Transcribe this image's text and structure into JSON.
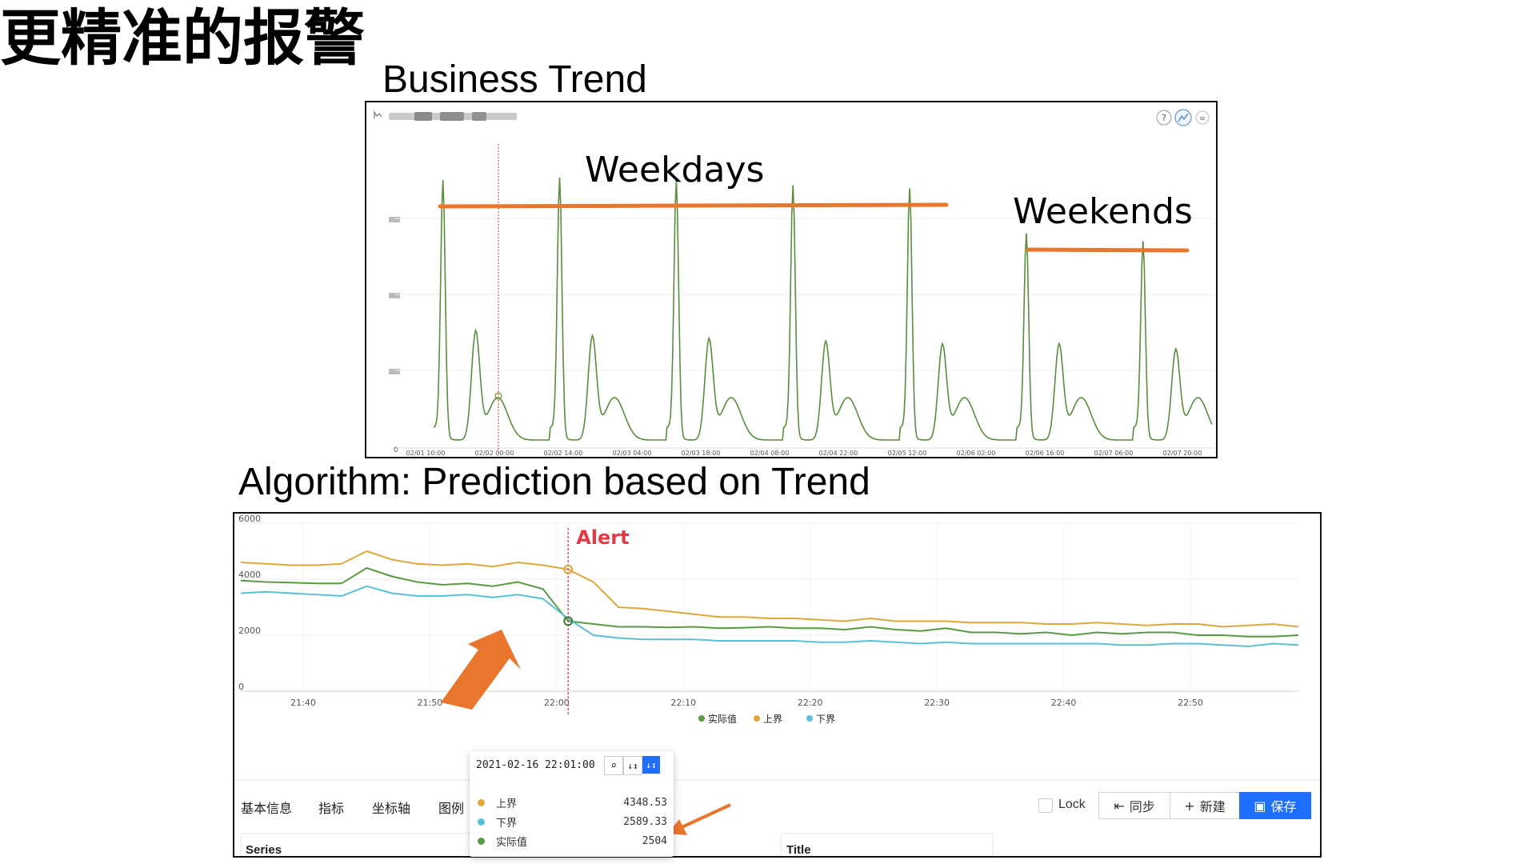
{
  "slide": {
    "title": "更精准的报警",
    "trend_title": "Business Trend",
    "algo_title": "Algorithm: Prediction based on Trend"
  },
  "trend_chart": {
    "annotations": {
      "weekdays": "Weekdays",
      "weekends": "Weekends"
    },
    "y_zero_label": "0",
    "x_ticks": [
      "02/01 10:00",
      "02/02 00:00",
      "02/02 14:00",
      "02/03 04:00",
      "02/03 18:00",
      "02/04 08:00",
      "02/04 22:00",
      "02/05 12:00",
      "02/06 02:00",
      "02/06 16:00",
      "02/07 06:00",
      "02/07 20:00"
    ],
    "colors": {
      "line": "#5b8c3e",
      "annotation": "#e8762d",
      "marker": "#c0392b"
    }
  },
  "chart_data": [
    {
      "type": "line",
      "title": "",
      "x": [
        "02/01 10:00",
        "02/02 00:00",
        "02/02 14:00",
        "02/03 04:00",
        "02/03 18:00",
        "02/04 08:00",
        "02/04 22:00",
        "02/05 12:00",
        "02/06 02:00",
        "02/06 16:00",
        "02/07 06:00",
        "02/07 20:00"
      ],
      "series": [
        {
          "values": [
            0.05,
            0.95,
            0.4,
            0.96,
            0.38,
            0.95,
            0.37,
            0.93,
            0.35,
            0.92,
            0.03,
            0.75
          ]
        }
      ],
      "ylim": [
        0,
        1
      ],
      "grid": true
    },
    {
      "type": "line",
      "title": "",
      "x": [
        "21:35",
        "21:37",
        "21:39",
        "21:41",
        "21:43",
        "21:45",
        "21:47",
        "21:49",
        "21:51",
        "21:53",
        "21:55",
        "21:57",
        "21:59",
        "22:01",
        "22:03",
        "22:05",
        "22:07",
        "22:09",
        "22:11",
        "22:13",
        "22:15",
        "22:17",
        "22:19",
        "22:21",
        "22:23",
        "22:25",
        "22:27",
        "22:29",
        "22:31",
        "22:33",
        "22:35",
        "22:37",
        "22:39",
        "22:41",
        "22:43",
        "22:45",
        "22:47",
        "22:49",
        "22:51",
        "22:53",
        "22:55",
        "22:57",
        "22:59"
      ],
      "x_ticks": [
        "21:40",
        "21:50",
        "22:00",
        "22:10",
        "22:20",
        "22:30",
        "22:40",
        "22:50"
      ],
      "y_ticks": [
        "0",
        "2000",
        "4000",
        "6000"
      ],
      "ylim": [
        0,
        6000
      ],
      "grid": true,
      "legend_position": "bottom",
      "series": [
        {
          "name": "实际值",
          "color": "#5a9a45",
          "values": [
            3950,
            3900,
            3880,
            3850,
            3850,
            4400,
            4100,
            3900,
            3800,
            3850,
            3750,
            3900,
            3650,
            2504,
            2400,
            2300,
            2300,
            2280,
            2300,
            2250,
            2270,
            2300,
            2250,
            2250,
            2200,
            2300,
            2200,
            2150,
            2250,
            2100,
            2100,
            2050,
            2100,
            2000,
            2100,
            2050,
            2100,
            2100,
            2000,
            2000,
            1950,
            1950,
            2000
          ]
        },
        {
          "name": "上界",
          "color": "#dea73d",
          "values": [
            4600,
            4550,
            4500,
            4500,
            4550,
            5000,
            4700,
            4550,
            4500,
            4550,
            4450,
            4600,
            4500,
            4348.53,
            3900,
            3000,
            2950,
            2850,
            2750,
            2650,
            2650,
            2600,
            2600,
            2550,
            2500,
            2600,
            2500,
            2500,
            2500,
            2450,
            2450,
            2450,
            2400,
            2400,
            2450,
            2400,
            2350,
            2400,
            2400,
            2300,
            2350,
            2400,
            2300
          ]
        },
        {
          "name": "下界",
          "color": "#5bbfd7",
          "values": [
            3500,
            3550,
            3500,
            3450,
            3400,
            3750,
            3500,
            3400,
            3400,
            3450,
            3350,
            3450,
            3300,
            2589.33,
            2000,
            1900,
            1850,
            1850,
            1850,
            1800,
            1800,
            1800,
            1800,
            1750,
            1750,
            1800,
            1750,
            1700,
            1750,
            1700,
            1700,
            1700,
            1700,
            1700,
            1700,
            1650,
            1650,
            1700,
            1700,
            1650,
            1600,
            1700,
            1650
          ]
        }
      ],
      "annotations": [
        "Alert"
      ]
    }
  ],
  "algo_chart": {
    "alert_label": "Alert",
    "alert_color": "#d62f3a",
    "arrow_color": "#e8762d",
    "y_ticks": [
      "0",
      "2000",
      "4000",
      "6000"
    ],
    "x_ticks": [
      "21:40",
      "21:50",
      "22:00",
      "22:10",
      "22:20",
      "22:30",
      "22:40",
      "22:50"
    ],
    "legend": [
      {
        "label": "实际值",
        "color": "#5a9a45"
      },
      {
        "label": "上界",
        "color": "#dea73d"
      },
      {
        "label": "下界",
        "color": "#5bbfd7"
      }
    ]
  },
  "tooltip": {
    "timestamp": "2021-02-16 22:01:00",
    "rows": [
      {
        "label": "上界",
        "value": "4348.53",
        "color": "#dea73d"
      },
      {
        "label": "下界",
        "value": "2589.33",
        "color": "#5bbfd7"
      },
      {
        "label": "实际值",
        "value": "2504",
        "color": "#5a9a45"
      }
    ],
    "icons": [
      "search-icon",
      "sort-asc-icon",
      "sort-desc-icon"
    ]
  },
  "toolbar": {
    "tabs": [
      "基本信息",
      "指标",
      "坐标轴",
      "图例"
    ],
    "lock_label": "Lock",
    "sync_label": "同步",
    "new_label": "新建",
    "save_label": "保存",
    "save_color": "#1f6fff"
  },
  "fields": {
    "series_label": "Series",
    "title_label": "Title"
  }
}
